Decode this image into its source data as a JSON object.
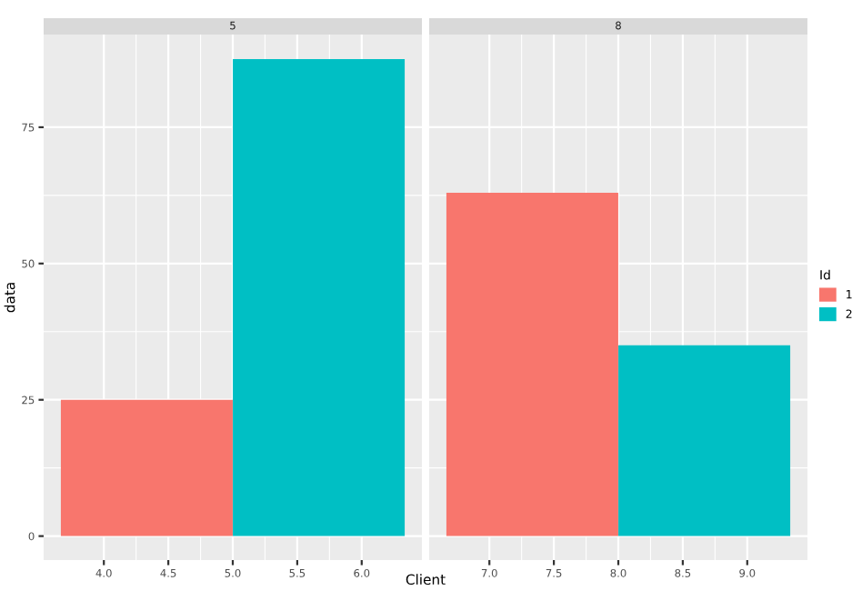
{
  "chart_data": [
    {
      "type": "bar",
      "title": "5",
      "ylabel": "data",
      "legend_title": "Id",
      "legend": "right",
      "series": [
        {
          "name": "1",
          "color": "#f8766d",
          "x": [
            4.333
          ],
          "values": [
            25
          ]
        },
        {
          "name": "2",
          "color": "#00bfc4",
          "x": [
            5.667
          ],
          "values": [
            87.5
          ]
        }
      ],
      "xlim": [
        3.533,
        6.467
      ],
      "xticks": [
        {
          "value": 4,
          "label": "4.0"
        },
        {
          "value": 4.5,
          "label": "4.5"
        },
        {
          "value": 5,
          "label": "5.0"
        },
        {
          "value": 5.5,
          "label": "5.5"
        },
        {
          "value": 6,
          "label": "6.0"
        }
      ],
      "ylim": [
        -4.4,
        92
      ],
      "yticks": [
        0,
        25,
        50,
        75
      ],
      "grid": true
    },
    {
      "type": "bar",
      "title": "8",
      "xlabel": "Client",
      "series": [
        {
          "name": "1",
          "color": "#f8766d",
          "x": [
            7.333
          ],
          "values": [
            63
          ]
        },
        {
          "name": "2",
          "color": "#00bfc4",
          "x": [
            8.667
          ],
          "values": [
            35
          ]
        }
      ],
      "xlim": [
        6.533,
        9.467
      ],
      "xticks": [
        {
          "value": 7,
          "label": "7.0"
        },
        {
          "value": 7.5,
          "label": "7.5"
        },
        {
          "value": 8,
          "label": "8.0"
        },
        {
          "value": 8.5,
          "label": "8.5"
        },
        {
          "value": 9,
          "label": "9.0"
        }
      ],
      "ylim": [
        -4.4,
        92
      ],
      "yticks": [
        0,
        25,
        50,
        75
      ],
      "grid": true,
      "tick_labels": "x"
    }
  ]
}
